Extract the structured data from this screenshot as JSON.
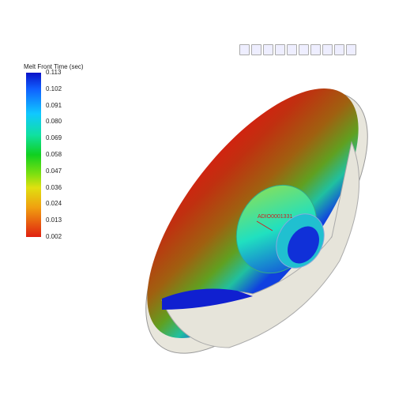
{
  "legend": {
    "title": "Melt Front Time (sec)",
    "labels": [
      "0.113",
      "0.102",
      "0.091",
      "0.080",
      "0.069",
      "0.058",
      "0.047",
      "0.036",
      "0.024",
      "0.013",
      "0.002"
    ]
  },
  "annotation": "ADIO0001331"
}
